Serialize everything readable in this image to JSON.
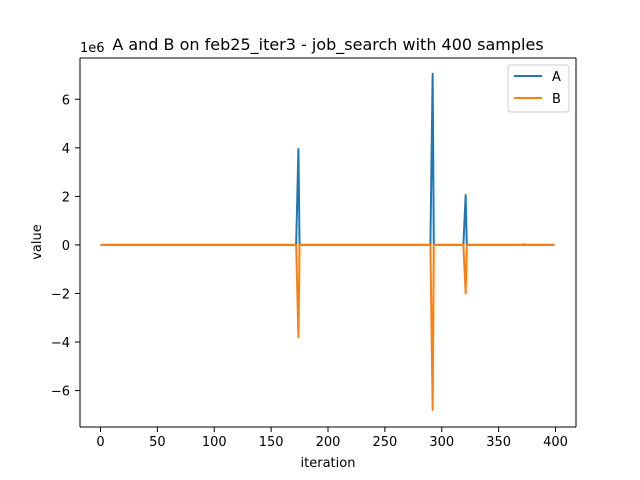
{
  "chart_data": {
    "type": "line",
    "title": "A and B on feb25_iter3 - job_search with 400 samples",
    "xlabel": "iteration",
    "ylabel": "value",
    "y_scale_label": "1e6",
    "xlim": [
      -18,
      418
    ],
    "ylim": [
      -7500000,
      7700000
    ],
    "x_ticks": [
      0,
      50,
      100,
      150,
      200,
      250,
      300,
      350,
      400
    ],
    "x_tick_labels": [
      "0",
      "50",
      "100",
      "150",
      "200",
      "250",
      "300",
      "350",
      "400"
    ],
    "y_ticks": [
      -6000000,
      -4000000,
      -2000000,
      0,
      2000000,
      4000000,
      6000000
    ],
    "y_tick_labels": [
      "−6",
      "−4",
      "−2",
      "0",
      "2",
      "4",
      "6"
    ],
    "grid": false,
    "legend_position": "upper right",
    "series": [
      {
        "name": "A",
        "color": "#1f77b4",
        "points": [
          [
            0,
            0
          ],
          [
            172,
            0
          ],
          [
            174,
            3950000
          ],
          [
            175,
            0
          ],
          [
            290,
            0
          ],
          [
            292,
            7050000
          ],
          [
            293,
            0
          ],
          [
            319,
            0
          ],
          [
            321,
            2050000
          ],
          [
            322,
            0
          ],
          [
            371,
            0
          ],
          [
            372,
            30000
          ],
          [
            373,
            0
          ],
          [
            399,
            0
          ]
        ]
      },
      {
        "name": "B",
        "color": "#ff7f0e",
        "points": [
          [
            0,
            0
          ],
          [
            172,
            0
          ],
          [
            174,
            -3800000
          ],
          [
            175,
            0
          ],
          [
            290,
            0
          ],
          [
            292,
            -6800000
          ],
          [
            293,
            0
          ],
          [
            319,
            0
          ],
          [
            321,
            -2000000
          ],
          [
            322,
            0
          ],
          [
            399,
            0
          ]
        ]
      }
    ]
  }
}
